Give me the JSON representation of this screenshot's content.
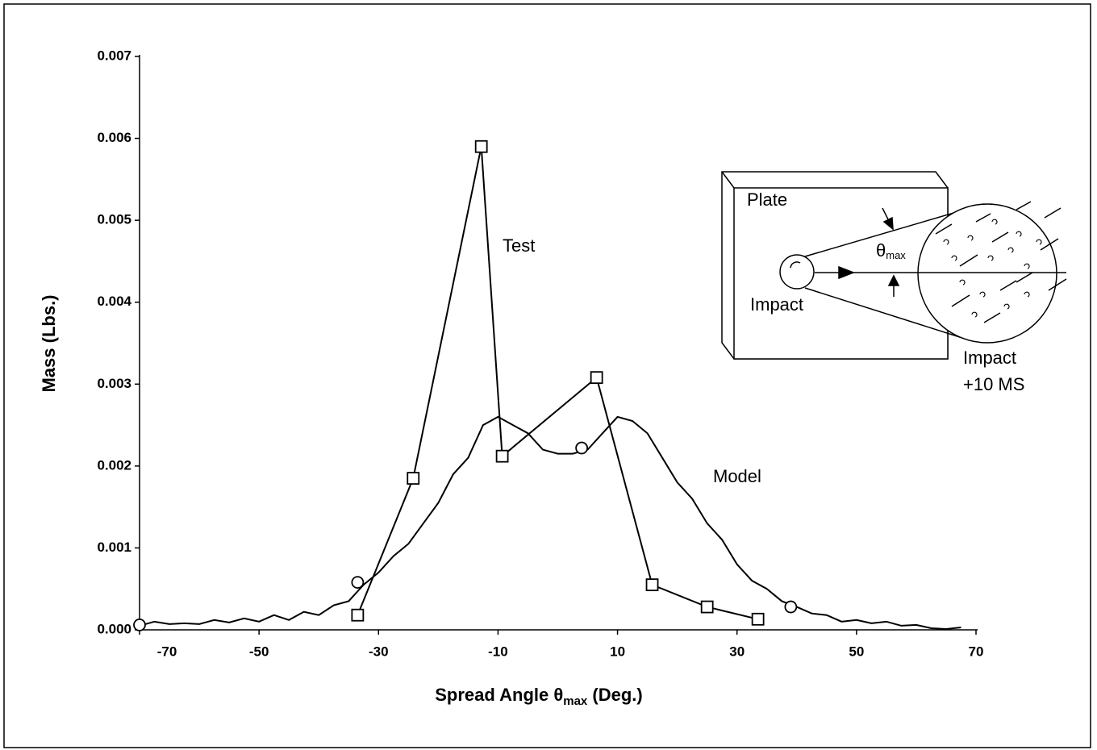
{
  "chart_data": {
    "type": "line",
    "y_label": "Mass (Lbs.)",
    "x_label": [
      "Spread Angle θ",
      "max",
      " (Deg.)"
    ],
    "annotations": [
      "Test",
      "Model"
    ],
    "inset": {
      "plate": "Plate",
      "impact": "Impact",
      "impact_later": [
        "Impact",
        "+10 MS"
      ],
      "angle": "θ",
      "angle_sub": "max"
    },
    "xlim": [
      -70,
      70
    ],
    "xticks": [
      -70,
      -50,
      -30,
      -10,
      10,
      30,
      50,
      70
    ],
    "ylim": [
      0,
      0.007
    ],
    "yticks": [
      {
        "value": 0,
        "label": "0.000"
      },
      {
        "value": 0.001,
        "label": "0.001"
      },
      {
        "value": 0.002,
        "label": "0.002"
      },
      {
        "value": 0.003,
        "label": "0.003"
      },
      {
        "value": 0.004,
        "label": "0.004"
      },
      {
        "value": 0.005,
        "label": "0.005"
      },
      {
        "value": 0.006,
        "label": "0.006"
      },
      {
        "value": 0.007,
        "label": "0.007"
      }
    ],
    "series": [
      {
        "name": "Test",
        "color": "#000000",
        "marker": "square",
        "line": true,
        "x": [
          -33.5,
          -24.2,
          -12.8,
          -9.3,
          6.5,
          15.8,
          25,
          33.5
        ],
        "values": [
          0.00018,
          0.00185,
          0.0059,
          0.00212,
          0.00308,
          0.00055,
          0.00028,
          0.00013
        ]
      },
      {
        "name": "Model",
        "color": "#000000",
        "marker": "none",
        "line": true,
        "x": [
          -70,
          -67.5,
          -65,
          -62.5,
          -60,
          -57.5,
          -55,
          -52.5,
          -50,
          -47.5,
          -45,
          -42.5,
          -40,
          -37.5,
          -35,
          -32.5,
          -30,
          -27.5,
          -25,
          -22.5,
          -20,
          -17.5,
          -15,
          -12.5,
          -10,
          -7.5,
          -5,
          -2.5,
          0,
          2.5,
          5,
          7.5,
          10,
          12.5,
          15,
          17.5,
          20,
          22.5,
          25,
          27.5,
          30,
          32.5,
          35,
          37.5,
          40,
          42.5,
          45,
          47.5,
          50,
          52.5,
          55,
          57.5,
          60,
          62.5,
          65,
          67.5
        ],
        "values": [
          5e-05,
          0.0001,
          7e-05,
          8e-05,
          7e-05,
          0.00012,
          9e-05,
          0.00014,
          0.0001,
          0.00018,
          0.00012,
          0.00022,
          0.00018,
          0.0003,
          0.00035,
          0.00055,
          0.0007,
          0.0009,
          0.00105,
          0.0013,
          0.00155,
          0.0019,
          0.0021,
          0.0025,
          0.0026,
          0.0025,
          0.0024,
          0.0022,
          0.00215,
          0.00215,
          0.0022,
          0.0024,
          0.0026,
          0.00255,
          0.0024,
          0.0021,
          0.0018,
          0.0016,
          0.0013,
          0.0011,
          0.0008,
          0.0006,
          0.0005,
          0.00035,
          0.00028,
          0.0002,
          0.00018,
          0.0001,
          0.00012,
          8e-05,
          0.0001,
          5e-05,
          6e-05,
          2e-05,
          1e-05,
          3e-05
        ]
      },
      {
        "color": "#000000",
        "marker": "circle",
        "line": false,
        "x": [
          -70,
          -33.5,
          4,
          39
        ],
        "values": [
          6e-05,
          0.00058,
          0.00222,
          0.00028
        ]
      }
    ]
  }
}
